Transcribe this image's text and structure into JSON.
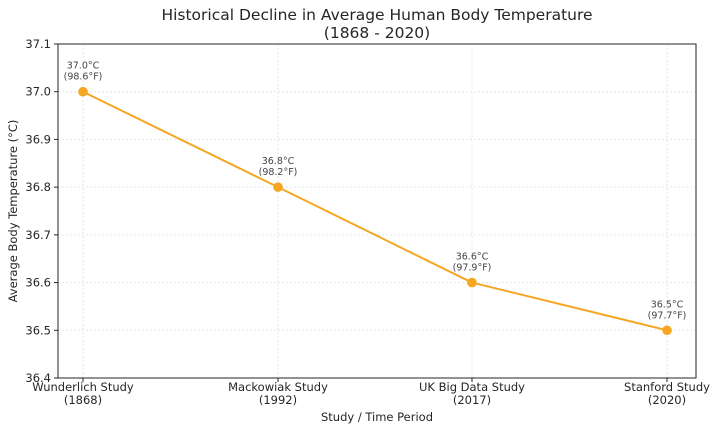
{
  "chart_data": {
    "type": "line",
    "title": "Historical Decline in Average Human Body Temperature",
    "subtitle": "(1868 - 2020)",
    "xlabel": "Study / Time Period",
    "ylabel": "Average Body Temperature (°C)",
    "categories": [
      [
        "Wunderlich Study",
        "(1868)"
      ],
      [
        "Mackowiak Study",
        "(1992)"
      ],
      [
        "UK Big Data Study",
        "(2017)"
      ],
      [
        "Stanford Study",
        "(2020)"
      ]
    ],
    "series": [
      {
        "values": [
          37.0,
          36.8,
          36.6,
          36.5
        ],
        "color": "#f5a623"
      }
    ],
    "data_labels": [
      [
        "37.0°C",
        "(98.6°F)"
      ],
      [
        "36.8°C",
        "(98.2°F)"
      ],
      [
        "36.6°C",
        "(97.9°F)"
      ],
      [
        "36.5°C",
        "(97.7°F)"
      ]
    ],
    "ylim": [
      36.4,
      37.1
    ],
    "yticks": [
      "36.4",
      "36.5",
      "36.6",
      "36.7",
      "36.8",
      "36.9",
      "37.0",
      "37.1"
    ],
    "grid": true,
    "legend": "none"
  }
}
